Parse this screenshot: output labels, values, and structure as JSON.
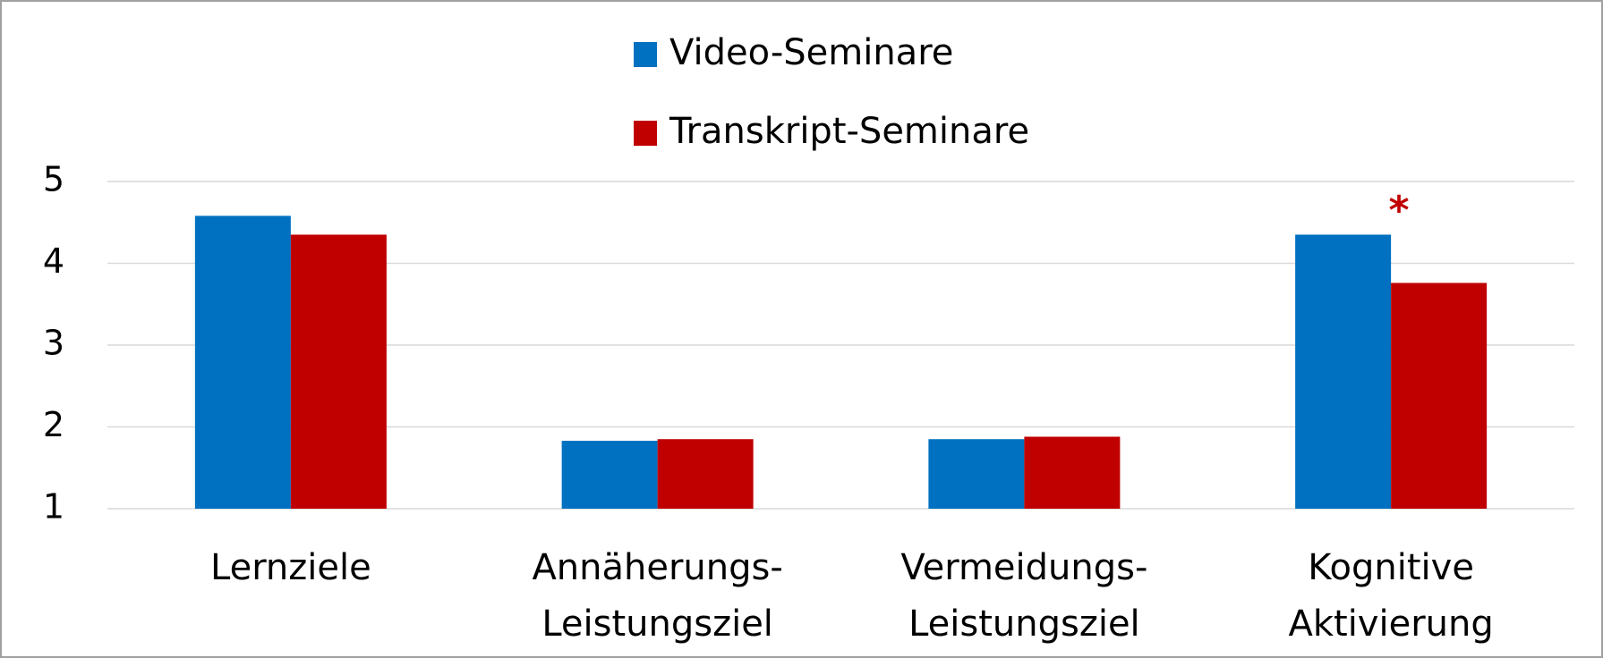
{
  "chart_data": {
    "type": "bar",
    "categories": [
      [
        "Lernziele"
      ],
      [
        "Annäherungs-",
        "Leistungsziel"
      ],
      [
        "Vermeidungs-",
        "Leistungsziel"
      ],
      [
        "Kognitive",
        "Aktivierung"
      ]
    ],
    "series": [
      {
        "name": "Video-Seminare",
        "color": "#0070c0",
        "values": [
          4.58,
          1.83,
          1.85,
          4.35
        ]
      },
      {
        "name": "Transkript-Seminare",
        "color": "#c00000",
        "values": [
          4.35,
          1.85,
          1.88,
          3.76
        ]
      }
    ],
    "ylim": [
      1,
      5
    ],
    "yticks": [
      1,
      2,
      3,
      4,
      5
    ],
    "grid": true,
    "annotations": [
      {
        "text": "*",
        "color": "#c00000"
      }
    ]
  }
}
